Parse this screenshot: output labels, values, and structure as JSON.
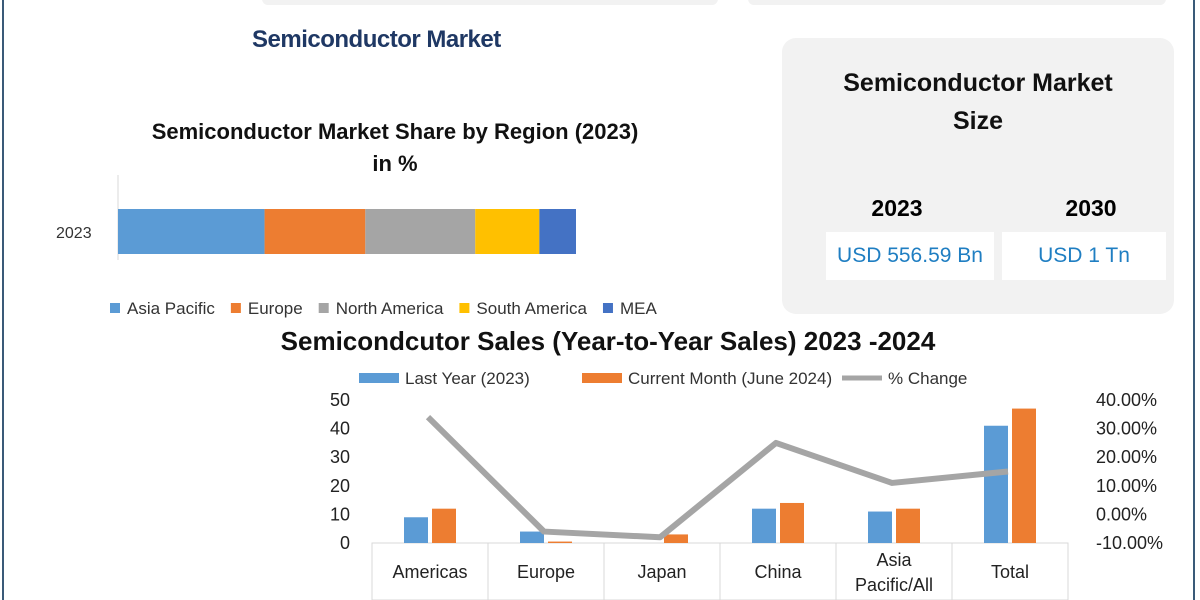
{
  "title": "Semiconductor Market",
  "size_box": {
    "title": "Semiconductor Market Size",
    "years": [
      {
        "year": "2023",
        "value": "USD 556.59 Bn"
      },
      {
        "year": "2030",
        "value": "USD 1 Tn"
      }
    ]
  },
  "chart_data": [
    {
      "type": "bar",
      "orientation": "horizontal-stacked",
      "title": "Semiconductor Market Share by Region (2023) in %",
      "title_line1": "Semiconductor Market Share by Region (2023)",
      "title_line2": "in %",
      "categories": [
        "2023"
      ],
      "series": [
        {
          "name": "Asia Pacific",
          "values": [
            32
          ],
          "color": "#5b9bd5"
        },
        {
          "name": "Europe",
          "values": [
            22
          ],
          "color": "#ed7d31"
        },
        {
          "name": "North America",
          "values": [
            24
          ],
          "color": "#a5a5a5"
        },
        {
          "name": "South America",
          "values": [
            14
          ],
          "color": "#ffc000"
        },
        {
          "name": "MEA",
          "values": [
            8
          ],
          "color": "#4472c4"
        }
      ],
      "legend": "bottom"
    },
    {
      "type": "bar",
      "title": "Semicondcutor Sales (Year-to-Year Sales) 2023 -2024",
      "categories": [
        "Americas",
        "Europe",
        "Japan",
        "China",
        "Asia Pacific/All",
        "Total"
      ],
      "series": [
        {
          "name": "Last Year (2023)",
          "values": [
            9,
            4,
            0,
            12,
            11,
            41
          ],
          "color": "#5b9bd5",
          "axis": "left"
        },
        {
          "name": "Current Month (June 2024)",
          "values": [
            12,
            0.5,
            3,
            14,
            12,
            47
          ],
          "color": "#ed7d31",
          "axis": "left"
        },
        {
          "name": "% Change",
          "type": "line",
          "values": [
            34,
            -6,
            -8,
            25,
            11,
            15
          ],
          "color": "#a5a5a5",
          "axis": "right"
        }
      ],
      "ylim": [
        0,
        50
      ],
      "yticks": [
        "0",
        "10",
        "20",
        "30",
        "40",
        "50"
      ],
      "y2lim": [
        -10,
        40
      ],
      "y2ticks": [
        "-10.00%",
        "0.00%",
        "10.00%",
        "20.00%",
        "30.00%",
        "40.00%"
      ],
      "legend": "top"
    }
  ]
}
